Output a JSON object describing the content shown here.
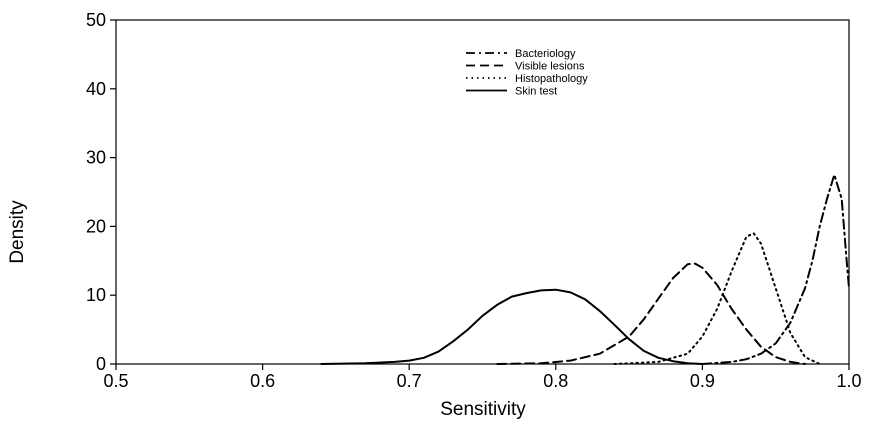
{
  "chart_data": {
    "type": "line",
    "xlabel": "Sensitivity",
    "ylabel": "Density",
    "xlim": [
      0.5,
      1.0
    ],
    "ylim": [
      0,
      50
    ],
    "xticks": [
      "0.5",
      "0.6",
      "0.7",
      "0.8",
      "0.9",
      "1.0"
    ],
    "yticks": [
      "0",
      "10",
      "20",
      "30",
      "40",
      "50"
    ],
    "grid": false,
    "legend_position": "top-right",
    "series": [
      {
        "name": "Bacteriology",
        "dash": "dashdot",
        "points": [
          [
            0.9,
            0
          ],
          [
            0.92,
            0.3
          ],
          [
            0.93,
            0.7
          ],
          [
            0.94,
            1.5
          ],
          [
            0.95,
            3
          ],
          [
            0.96,
            6
          ],
          [
            0.97,
            11
          ],
          [
            0.975,
            15
          ],
          [
            0.98,
            20
          ],
          [
            0.985,
            24
          ],
          [
            0.99,
            27.5
          ],
          [
            0.995,
            24
          ],
          [
            0.998,
            16
          ],
          [
            1.0,
            11
          ]
        ]
      },
      {
        "name": "Visible lesions",
        "dash": "dashed",
        "points": [
          [
            0.76,
            0
          ],
          [
            0.79,
            0.1
          ],
          [
            0.81,
            0.5
          ],
          [
            0.83,
            1.5
          ],
          [
            0.85,
            4
          ],
          [
            0.86,
            6.5
          ],
          [
            0.87,
            9.5
          ],
          [
            0.88,
            12.5
          ],
          [
            0.89,
            14.5
          ],
          [
            0.895,
            14.6
          ],
          [
            0.9,
            14
          ],
          [
            0.91,
            11.5
          ],
          [
            0.92,
            8
          ],
          [
            0.93,
            5
          ],
          [
            0.94,
            2.5
          ],
          [
            0.95,
            1
          ],
          [
            0.96,
            0.3
          ],
          [
            0.97,
            0
          ]
        ]
      },
      {
        "name": "Histopathology",
        "dash": "dotted",
        "points": [
          [
            0.84,
            0
          ],
          [
            0.87,
            0.3
          ],
          [
            0.89,
            1.5
          ],
          [
            0.9,
            4
          ],
          [
            0.91,
            8
          ],
          [
            0.92,
            13.5
          ],
          [
            0.93,
            18.5
          ],
          [
            0.935,
            19
          ],
          [
            0.94,
            17.5
          ],
          [
            0.95,
            11
          ],
          [
            0.96,
            4.5
          ],
          [
            0.97,
            1
          ],
          [
            0.98,
            0
          ]
        ]
      },
      {
        "name": "Skin test",
        "dash": "solid",
        "points": [
          [
            0.64,
            0
          ],
          [
            0.67,
            0.1
          ],
          [
            0.69,
            0.3
          ],
          [
            0.7,
            0.5
          ],
          [
            0.71,
            0.9
          ],
          [
            0.72,
            1.8
          ],
          [
            0.73,
            3.3
          ],
          [
            0.74,
            5
          ],
          [
            0.75,
            7
          ],
          [
            0.76,
            8.6
          ],
          [
            0.77,
            9.8
          ],
          [
            0.78,
            10.3
          ],
          [
            0.79,
            10.7
          ],
          [
            0.8,
            10.8
          ],
          [
            0.81,
            10.4
          ],
          [
            0.82,
            9.4
          ],
          [
            0.83,
            7.7
          ],
          [
            0.84,
            5.7
          ],
          [
            0.85,
            3.6
          ],
          [
            0.86,
            1.9
          ],
          [
            0.87,
            0.9
          ],
          [
            0.88,
            0.4
          ],
          [
            0.89,
            0.1
          ],
          [
            0.9,
            0
          ]
        ]
      }
    ]
  }
}
